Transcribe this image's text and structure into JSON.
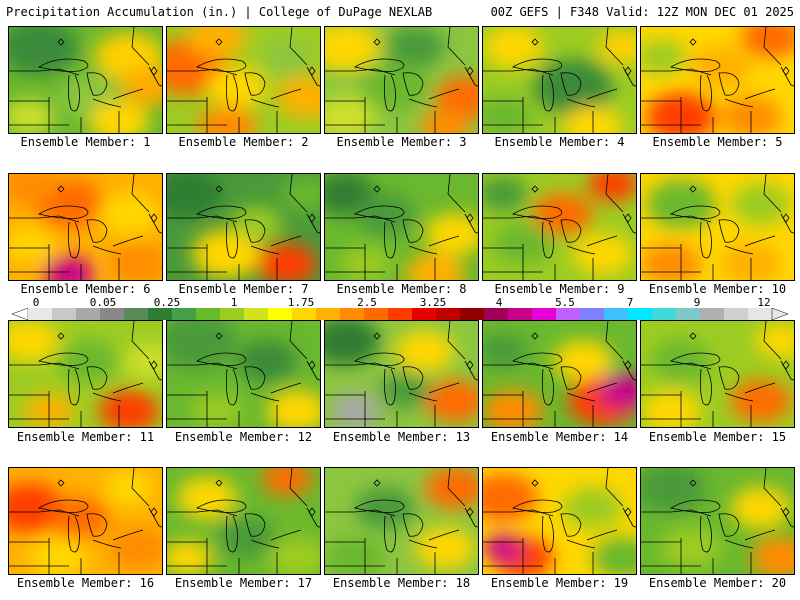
{
  "header": {
    "title": "Precipitation Accumulation (in.) | College of DuPage NEXLAB",
    "run_info": "00Z GEFS | F348 Valid: 12Z MON DEC 01 2025"
  },
  "colorbar": {
    "labels": [
      "0",
      "0.05",
      "0.25",
      "1",
      "1.75",
      "2.5",
      "3.25",
      "4",
      "5.5",
      "7",
      "9",
      "12"
    ],
    "colors": [
      "#e8e8e8",
      "#c8c8c8",
      "#a8a8a8",
      "#888888",
      "#5a8a5a",
      "#2e7d32",
      "#43a047",
      "#66bb2a",
      "#9ccc22",
      "#d4e21e",
      "#ffff00",
      "#ffd700",
      "#ffb000",
      "#ff8c00",
      "#ff6a00",
      "#ff3c00",
      "#e60000",
      "#c00000",
      "#900000",
      "#a0005a",
      "#c8008c",
      "#e800d8",
      "#c060ff",
      "#8080ff",
      "#40c0ff",
      "#00e8ff",
      "#40d8d8",
      "#80c8c8",
      "#b0b0b0",
      "#d0d0d0",
      "#e6e6e6"
    ]
  },
  "panels": [
    {
      "label": "Ensemble Member: 1",
      "base": "#6ab82e",
      "blobs": [
        [
          30,
          20,
          40,
          "#3a8a3a"
        ],
        [
          120,
          30,
          35,
          "#ffd000"
        ],
        [
          140,
          60,
          28,
          "#ffaa00"
        ],
        [
          80,
          70,
          30,
          "#8cc63f"
        ],
        [
          20,
          90,
          25,
          "#cfe02a"
        ],
        [
          110,
          95,
          30,
          "#ffd700"
        ]
      ]
    },
    {
      "label": "Ensemble Member: 2",
      "base": "#9ccc22",
      "blobs": [
        [
          20,
          40,
          40,
          "#ff6a00"
        ],
        [
          50,
          10,
          30,
          "#ffb000"
        ],
        [
          70,
          60,
          30,
          "#ffd700"
        ],
        [
          140,
          70,
          30,
          "#ffb000"
        ],
        [
          120,
          30,
          25,
          "#8cc63f"
        ],
        [
          60,
          100,
          30,
          "#ff8c00"
        ]
      ]
    },
    {
      "label": "Ensemble Member: 3",
      "base": "#8cc63f",
      "blobs": [
        [
          20,
          20,
          35,
          "#ffd700"
        ],
        [
          90,
          20,
          30,
          "#4a9a3a"
        ],
        [
          140,
          70,
          30,
          "#ff6a00"
        ],
        [
          70,
          60,
          35,
          "#6ab82e"
        ],
        [
          20,
          90,
          30,
          "#cfe02a"
        ],
        [
          120,
          100,
          25,
          "#ff8c00"
        ]
      ]
    },
    {
      "label": "Ensemble Member: 4",
      "base": "#9ccc22",
      "blobs": [
        [
          30,
          20,
          30,
          "#ffd700"
        ],
        [
          90,
          60,
          40,
          "#3a8a3a"
        ],
        [
          140,
          20,
          25,
          "#ffd000"
        ],
        [
          20,
          90,
          30,
          "#6ab82e"
        ],
        [
          110,
          100,
          30,
          "#ffd700"
        ]
      ]
    },
    {
      "label": "Ensemble Member: 5",
      "base": "#ffd700",
      "blobs": [
        [
          130,
          10,
          30,
          "#ff6a00"
        ],
        [
          80,
          40,
          30,
          "#ffb000"
        ],
        [
          40,
          90,
          35,
          "#ff3c00"
        ],
        [
          110,
          90,
          30,
          "#ff8c00"
        ],
        [
          20,
          30,
          25,
          "#9ccc22"
        ]
      ]
    },
    {
      "label": "Ensemble Member: 6",
      "base": "#ffb000",
      "blobs": [
        [
          60,
          30,
          35,
          "#ff6a00"
        ],
        [
          20,
          10,
          30,
          "#ff8c00"
        ],
        [
          120,
          40,
          30,
          "#ffd700"
        ],
        [
          60,
          100,
          25,
          "#c8008c"
        ],
        [
          130,
          90,
          30,
          "#ff8c00"
        ],
        [
          20,
          70,
          25,
          "#ffd700"
        ]
      ]
    },
    {
      "label": "Ensemble Member: 7",
      "base": "#4a9a3a",
      "blobs": [
        [
          20,
          20,
          35,
          "#2e7d32"
        ],
        [
          60,
          80,
          35,
          "#ffd700"
        ],
        [
          120,
          90,
          30,
          "#ff3c00"
        ],
        [
          140,
          20,
          25,
          "#6ab82e"
        ],
        [
          90,
          50,
          25,
          "#9ccc22"
        ]
      ]
    },
    {
      "label": "Ensemble Member: 8",
      "base": "#6ab82e",
      "blobs": [
        [
          20,
          20,
          30,
          "#2e7d32"
        ],
        [
          60,
          40,
          30,
          "#4a9a3a"
        ],
        [
          130,
          60,
          30,
          "#ffd700"
        ],
        [
          110,
          100,
          30,
          "#ffb000"
        ],
        [
          40,
          90,
          25,
          "#9ccc22"
        ]
      ]
    },
    {
      "label": "Ensemble Member: 9",
      "base": "#9ccc22",
      "blobs": [
        [
          130,
          10,
          25,
          "#ff3c00"
        ],
        [
          80,
          40,
          30,
          "#ff6a00"
        ],
        [
          40,
          70,
          30,
          "#6ab82e"
        ],
        [
          120,
          80,
          30,
          "#ffd700"
        ],
        [
          20,
          20,
          25,
          "#4a9a3a"
        ]
      ]
    },
    {
      "label": "Ensemble Member: 10",
      "base": "#ffd700",
      "blobs": [
        [
          40,
          30,
          35,
          "#6ab82e"
        ],
        [
          120,
          30,
          30,
          "#9ccc22"
        ],
        [
          30,
          90,
          30,
          "#ff8c00"
        ],
        [
          110,
          90,
          30,
          "#ffb000"
        ]
      ]
    },
    {
      "label": "Ensemble Member: 11",
      "base": "#9ccc22",
      "blobs": [
        [
          20,
          20,
          30,
          "#ffd700"
        ],
        [
          80,
          40,
          30,
          "#6ab82e"
        ],
        [
          120,
          90,
          30,
          "#ff3c00"
        ],
        [
          40,
          90,
          25,
          "#ffb000"
        ],
        [
          140,
          40,
          25,
          "#cfe02a"
        ]
      ]
    },
    {
      "label": "Ensemble Member: 12",
      "base": "#6ab82e",
      "blobs": [
        [
          30,
          20,
          40,
          "#4a9a3a"
        ],
        [
          100,
          40,
          30,
          "#3a8a3a"
        ],
        [
          130,
          90,
          30,
          "#ffd700"
        ],
        [
          50,
          90,
          25,
          "#9ccc22"
        ]
      ]
    },
    {
      "label": "Ensemble Member: 13",
      "base": "#8cc63f",
      "blobs": [
        [
          20,
          20,
          35,
          "#2e7d32"
        ],
        [
          100,
          30,
          30,
          "#ffd700"
        ],
        [
          130,
          80,
          30,
          "#ff6a00"
        ],
        [
          30,
          90,
          25,
          "#a8a8a8"
        ],
        [
          80,
          70,
          25,
          "#4a9a3a"
        ]
      ]
    },
    {
      "label": "Ensemble Member: 14",
      "base": "#6ab82e",
      "blobs": [
        [
          100,
          40,
          30,
          "#ffd700"
        ],
        [
          120,
          80,
          35,
          "#ff3c00"
        ],
        [
          140,
          70,
          25,
          "#c8008c"
        ],
        [
          30,
          90,
          30,
          "#ff8c00"
        ],
        [
          20,
          30,
          25,
          "#4a9a3a"
        ]
      ]
    },
    {
      "label": "Ensemble Member: 15",
      "base": "#9ccc22",
      "blobs": [
        [
          40,
          40,
          30,
          "#6ab82e"
        ],
        [
          120,
          80,
          30,
          "#ff6a00"
        ],
        [
          140,
          20,
          25,
          "#ffd700"
        ],
        [
          30,
          90,
          30,
          "#ffd700"
        ]
      ]
    },
    {
      "label": "Ensemble Member: 16",
      "base": "#ffb000",
      "blobs": [
        [
          20,
          40,
          35,
          "#ff3c00"
        ],
        [
          70,
          50,
          30,
          "#ff6a00"
        ],
        [
          120,
          20,
          25,
          "#ffd700"
        ],
        [
          130,
          80,
          30,
          "#ff8c00"
        ],
        [
          50,
          90,
          30,
          "#ffd700"
        ]
      ]
    },
    {
      "label": "Ensemble Member: 17",
      "base": "#6ab82e",
      "blobs": [
        [
          120,
          10,
          25,
          "#ff6a00"
        ],
        [
          40,
          30,
          30,
          "#ffd700"
        ],
        [
          80,
          70,
          30,
          "#4a9a3a"
        ],
        [
          130,
          90,
          30,
          "#9ccc22"
        ],
        [
          20,
          90,
          25,
          "#ffd700"
        ]
      ]
    },
    {
      "label": "Ensemble Member: 18",
      "base": "#8cc63f",
      "blobs": [
        [
          130,
          20,
          30,
          "#ff6a00"
        ],
        [
          60,
          40,
          30,
          "#4a9a3a"
        ],
        [
          120,
          80,
          30,
          "#ffd700"
        ],
        [
          30,
          90,
          30,
          "#6ab82e"
        ]
      ]
    },
    {
      "label": "Ensemble Member: 19",
      "base": "#ffd700",
      "blobs": [
        [
          20,
          30,
          35,
          "#ff6a00"
        ],
        [
          40,
          90,
          30,
          "#ff3c00"
        ],
        [
          20,
          80,
          20,
          "#c8008c"
        ],
        [
          110,
          40,
          30,
          "#9ccc22"
        ],
        [
          140,
          90,
          30,
          "#6ab82e"
        ]
      ]
    },
    {
      "label": "Ensemble Member: 20",
      "base": "#6ab82e",
      "blobs": [
        [
          30,
          20,
          35,
          "#4a9a3a"
        ],
        [
          120,
          40,
          30,
          "#ffd700"
        ],
        [
          140,
          90,
          30,
          "#ff8c00"
        ],
        [
          50,
          80,
          30,
          "#9ccc22"
        ]
      ]
    }
  ]
}
